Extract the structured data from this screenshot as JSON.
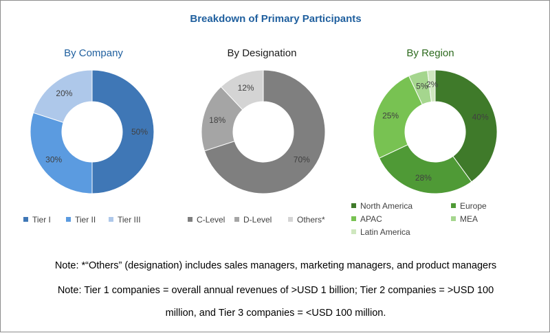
{
  "title": "Breakdown of Primary Participants",
  "title_color": "#1f5f9e",
  "chart_data": [
    {
      "type": "pie",
      "title": "By Company",
      "title_color": "#1f5f9e",
      "categories": [
        "Tier I",
        "Tier II",
        "Tier III"
      ],
      "values": [
        50,
        30,
        20
      ],
      "labels": [
        "50%",
        "30%",
        "20%"
      ],
      "colors": [
        "#3f77b6",
        "#5b9be0",
        "#aec8ea"
      ],
      "legend": "bottom"
    },
    {
      "type": "pie",
      "title": "By Designation",
      "title_color": "#1a1a1a",
      "categories": [
        "C-Level",
        "D-Level",
        "Others*"
      ],
      "values": [
        70,
        18,
        12
      ],
      "labels": [
        "70%",
        "18%",
        "12%"
      ],
      "colors": [
        "#7f7f7f",
        "#a5a5a5",
        "#d4d4d4"
      ],
      "legend": "bottom"
    },
    {
      "type": "pie",
      "title": "By Region",
      "title_color": "#2d6a1e",
      "categories": [
        "North America",
        "Europe",
        "APAC",
        "MEA",
        "Latin America"
      ],
      "values": [
        40,
        28,
        25,
        5,
        2
      ],
      "labels": [
        "40%",
        "28%",
        "25%",
        "5%",
        "2%"
      ],
      "colors": [
        "#3f7a2a",
        "#4f9a36",
        "#78c252",
        "#a5d68e",
        "#cfe7bf"
      ],
      "legend": "bottom"
    }
  ],
  "notes": [
    "Note: *“Others” (designation) includes sales managers, marketing managers, and product managers",
    "Note: Tier 1 companies = overall annual revenues of >USD 1 billion; Tier 2 companies = >USD 100",
    "million, and Tier 3 companies = <USD 100 million."
  ]
}
